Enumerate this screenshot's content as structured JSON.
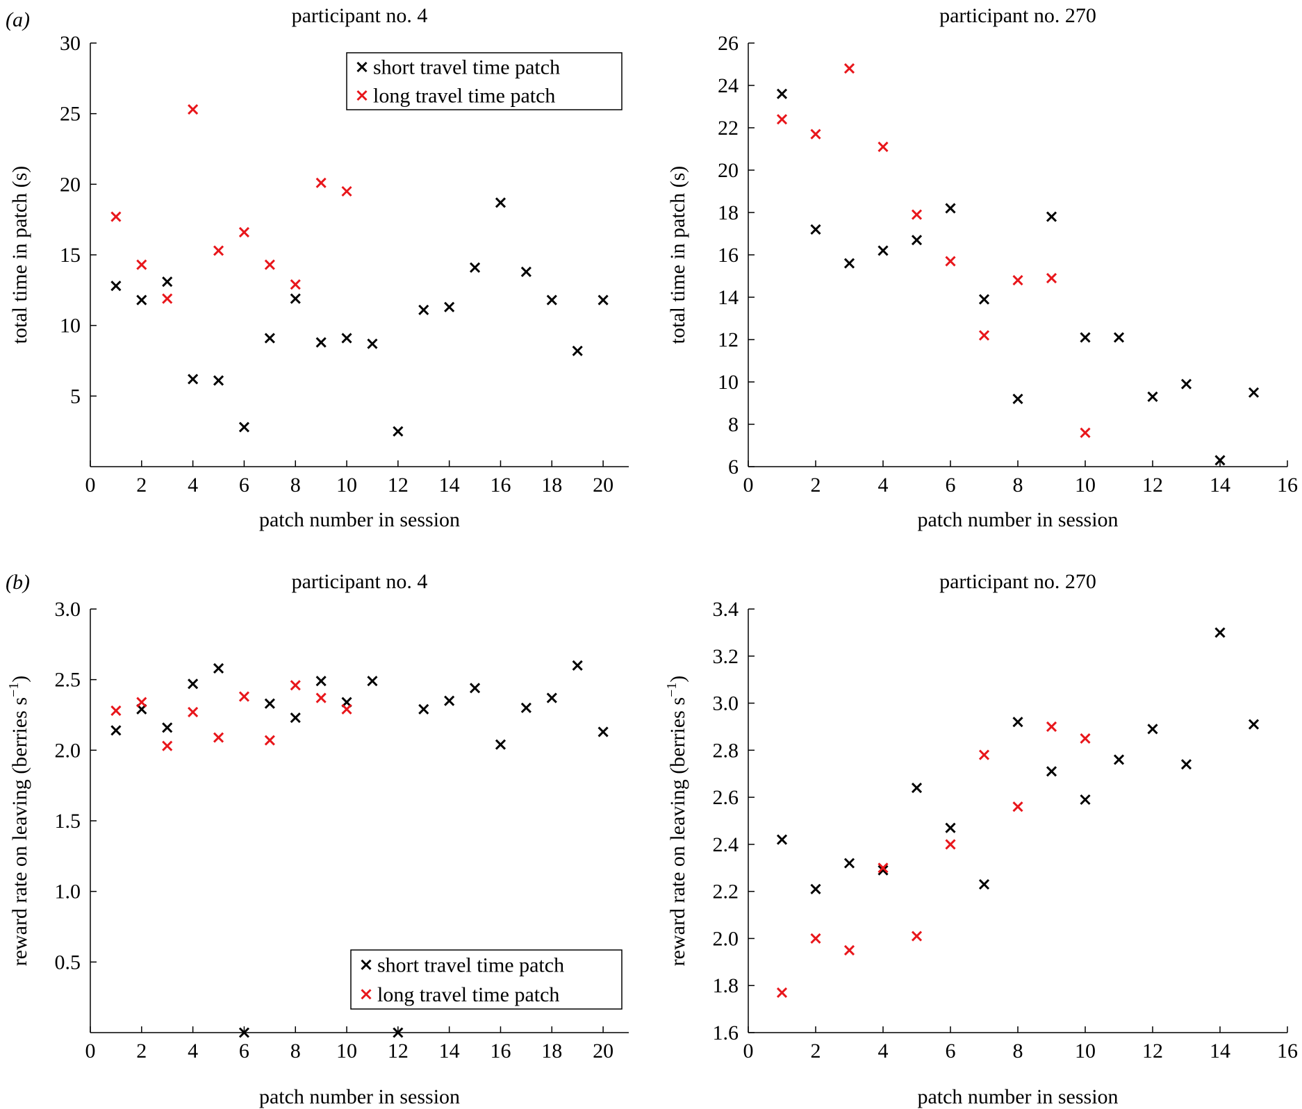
{
  "panel_labels": {
    "a": "(a)",
    "b": "(b)"
  },
  "colors": {
    "short": "#000000",
    "long": "#e8161b",
    "axis": "#000000"
  },
  "legend": {
    "short_label": "short travel time patch",
    "long_label": "long travel time patch"
  },
  "chart_data": [
    {
      "type": "scatter",
      "title": "participant no. 4",
      "xlabel": "patch number in session",
      "ylabel": "total time in patch (s)",
      "xlim": [
        0,
        21
      ],
      "ylim": [
        0,
        30
      ],
      "xticks": [
        0,
        2,
        4,
        6,
        8,
        10,
        12,
        14,
        16,
        18,
        20
      ],
      "yticks": [
        5,
        10,
        15,
        20,
        25,
        30
      ],
      "ytick_decimals": 0,
      "legend_position": "top-right",
      "series": [
        {
          "name": "short travel time patch",
          "color_key": "short",
          "points": [
            [
              1,
              12.8
            ],
            [
              2,
              11.8
            ],
            [
              3,
              13.1
            ],
            [
              4,
              6.2
            ],
            [
              5,
              6.1
            ],
            [
              6,
              2.8
            ],
            [
              7,
              9.1
            ],
            [
              8,
              11.9
            ],
            [
              9,
              8.8
            ],
            [
              10,
              9.1
            ],
            [
              11,
              8.7
            ],
            [
              12,
              2.5
            ],
            [
              13,
              11.1
            ],
            [
              14,
              11.3
            ],
            [
              15,
              14.1
            ],
            [
              16,
              18.7
            ],
            [
              17,
              13.8
            ],
            [
              18,
              11.8
            ],
            [
              19,
              8.2
            ],
            [
              20,
              11.8
            ]
          ]
        },
        {
          "name": "long travel time patch",
          "color_key": "long",
          "points": [
            [
              1,
              17.7
            ],
            [
              2,
              14.3
            ],
            [
              3,
              11.9
            ],
            [
              4,
              25.3
            ],
            [
              5,
              15.3
            ],
            [
              6,
              16.6
            ],
            [
              7,
              14.3
            ],
            [
              8,
              12.9
            ],
            [
              9,
              20.1
            ],
            [
              10,
              19.5
            ]
          ]
        }
      ]
    },
    {
      "type": "scatter",
      "title": "participant no. 270",
      "xlabel": "patch number in session",
      "ylabel": "total time in patch (s)",
      "xlim": [
        0,
        16
      ],
      "ylim": [
        6,
        26
      ],
      "xticks": [
        0,
        2,
        4,
        6,
        8,
        10,
        12,
        14,
        16
      ],
      "yticks": [
        6,
        8,
        10,
        12,
        14,
        16,
        18,
        20,
        22,
        24,
        26
      ],
      "ytick_decimals": 0,
      "series": [
        {
          "name": "short travel time patch",
          "color_key": "short",
          "points": [
            [
              1,
              23.6
            ],
            [
              2,
              17.2
            ],
            [
              3,
              15.6
            ],
            [
              4,
              16.2
            ],
            [
              5,
              16.7
            ],
            [
              6,
              18.2
            ],
            [
              7,
              13.9
            ],
            [
              8,
              9.2
            ],
            [
              9,
              17.8
            ],
            [
              10,
              12.1
            ],
            [
              11,
              12.1
            ],
            [
              12,
              9.3
            ],
            [
              13,
              9.9
            ],
            [
              14,
              6.3
            ],
            [
              15,
              9.5
            ]
          ]
        },
        {
          "name": "long travel time patch",
          "color_key": "long",
          "points": [
            [
              1,
              22.4
            ],
            [
              2,
              21.7
            ],
            [
              3,
              24.8
            ],
            [
              4,
              21.1
            ],
            [
              5,
              17.9
            ],
            [
              6,
              15.7
            ],
            [
              7,
              12.2
            ],
            [
              8,
              14.8
            ],
            [
              9,
              14.9
            ],
            [
              10,
              7.6
            ]
          ]
        }
      ]
    },
    {
      "type": "scatter",
      "title": "participant no. 4",
      "xlabel": "patch number in session",
      "ylabel": "reward rate on leaving (berries s",
      "ylabel_sup": "−1",
      "ylabel_tail": ")",
      "xlim": [
        0,
        21
      ],
      "ylim": [
        0,
        3.0
      ],
      "xticks": [
        0,
        2,
        4,
        6,
        8,
        10,
        12,
        14,
        16,
        18,
        20
      ],
      "yticks": [
        0.5,
        1.0,
        1.5,
        2.0,
        2.5,
        3.0
      ],
      "ytick_decimals": 1,
      "legend_position": "bottom-right",
      "series": [
        {
          "name": "short travel time patch",
          "color_key": "short",
          "points": [
            [
              1,
              2.14
            ],
            [
              2,
              2.29
            ],
            [
              3,
              2.16
            ],
            [
              4,
              2.47
            ],
            [
              5,
              2.58
            ],
            [
              6,
              0.0
            ],
            [
              7,
              2.33
            ],
            [
              8,
              2.23
            ],
            [
              9,
              2.49
            ],
            [
              10,
              2.34
            ],
            [
              11,
              2.49
            ],
            [
              12,
              0.0
            ],
            [
              13,
              2.29
            ],
            [
              14,
              2.35
            ],
            [
              15,
              2.44
            ],
            [
              16,
              2.04
            ],
            [
              17,
              2.3
            ],
            [
              18,
              2.37
            ],
            [
              19,
              2.6
            ],
            [
              20,
              2.13
            ]
          ]
        },
        {
          "name": "long travel time patch",
          "color_key": "long",
          "points": [
            [
              1,
              2.28
            ],
            [
              2,
              2.34
            ],
            [
              3,
              2.03
            ],
            [
              4,
              2.27
            ],
            [
              5,
              2.09
            ],
            [
              6,
              2.38
            ],
            [
              7,
              2.07
            ],
            [
              8,
              2.46
            ],
            [
              9,
              2.37
            ],
            [
              10,
              2.29
            ]
          ]
        }
      ]
    },
    {
      "type": "scatter",
      "title": "participant no. 270",
      "xlabel": "patch number in session",
      "ylabel": "reward rate on leaving (berries s",
      "ylabel_sup": "−1",
      "ylabel_tail": ")",
      "xlim": [
        0,
        16
      ],
      "ylim": [
        1.6,
        3.4
      ],
      "xticks": [
        0,
        2,
        4,
        6,
        8,
        10,
        12,
        14,
        16
      ],
      "yticks": [
        1.6,
        1.8,
        2.0,
        2.2,
        2.4,
        2.6,
        2.8,
        3.0,
        3.2,
        3.4
      ],
      "ytick_decimals": 1,
      "series": [
        {
          "name": "short travel time patch",
          "color_key": "short",
          "points": [
            [
              1,
              2.42
            ],
            [
              2,
              2.21
            ],
            [
              3,
              2.32
            ],
            [
              4,
              2.29
            ],
            [
              5,
              2.64
            ],
            [
              6,
              2.47
            ],
            [
              7,
              2.23
            ],
            [
              8,
              2.92
            ],
            [
              9,
              2.71
            ],
            [
              10,
              2.59
            ],
            [
              11,
              2.76
            ],
            [
              12,
              2.89
            ],
            [
              13,
              2.74
            ],
            [
              14,
              3.3
            ],
            [
              15,
              2.91
            ]
          ]
        },
        {
          "name": "long travel time patch",
          "color_key": "long",
          "points": [
            [
              1,
              1.77
            ],
            [
              2,
              2.0
            ],
            [
              3,
              1.95
            ],
            [
              4,
              2.3
            ],
            [
              5,
              2.01
            ],
            [
              6,
              2.4
            ],
            [
              7,
              2.78
            ],
            [
              8,
              2.56
            ],
            [
              9,
              2.9
            ],
            [
              10,
              2.85
            ]
          ]
        }
      ]
    }
  ]
}
